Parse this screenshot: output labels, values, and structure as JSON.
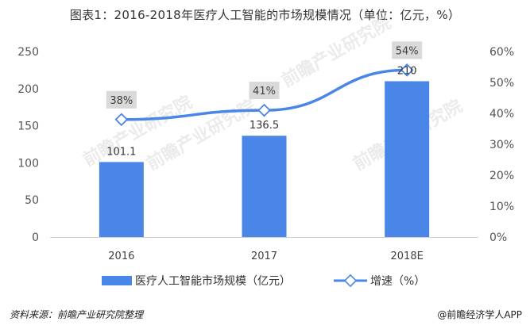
{
  "title": "图表1：2016-2018年医疗人工智能的市场规模情况（单位：亿元，%）",
  "source": "资料来源：前瞻产业研究院整理",
  "brand": "@前瞻经济学人APP",
  "watermark": "前瞻产业研究院",
  "colors": {
    "bar": "#4A86E8",
    "line": "#4A86E8",
    "label_box": "#d9d9d9"
  },
  "chart_data": {
    "type": "bar",
    "categories": [
      "2016",
      "2017",
      "2018E"
    ],
    "series": [
      {
        "name": "医疗人工智能市场规模（亿元）",
        "type": "bar",
        "axis": "left",
        "values": [
          101.1,
          136.5,
          210
        ],
        "labels": [
          "101.1",
          "136.5",
          "210"
        ]
      },
      {
        "name": "增速（%）",
        "type": "line",
        "axis": "right",
        "values": [
          38,
          41,
          54
        ],
        "labels": [
          "38%",
          "41%",
          "54%"
        ]
      }
    ],
    "ylim": [
      0,
      250
    ],
    "yticks": [
      "0",
      "50",
      "100",
      "150",
      "200",
      "250"
    ],
    "y2lim": [
      0,
      60
    ],
    "y2ticks": [
      "0%",
      "10%",
      "20%",
      "30%",
      "40%",
      "50%",
      "60%"
    ],
    "legend_position": "bottom"
  }
}
